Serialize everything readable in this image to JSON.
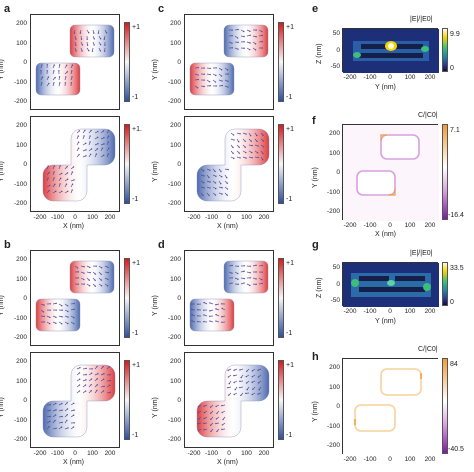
{
  "panels": {
    "a": "a",
    "b": "b",
    "c": "c",
    "d": "d",
    "e": "e",
    "f": "f",
    "g": "g",
    "h": "h"
  },
  "dots": {
    "a": "#e47aa8",
    "b": "#a8dcef",
    "c": "#d9141c",
    "d": "#3a62a8"
  },
  "colors": {
    "red": "#d7191c",
    "blue": "#2c4fa0"
  },
  "axes": {
    "x_label": "X (nm)",
    "y_label": "Y (nm)",
    "z_label": "Z (nm)",
    "y_ticks": [
      "200",
      "100",
      "0",
      "-100",
      "-200"
    ],
    "x_ticks": [
      "-200",
      "-100",
      "0",
      "100",
      "200"
    ],
    "z_ticks": [
      "50",
      "0",
      "-50"
    ]
  },
  "colorbars": {
    "a_top": {
      "max": "+1",
      "min": "-1"
    },
    "a_bot": {
      "max": "+1.",
      "min": "-1"
    },
    "b_top": {
      "max": "+1",
      "min": "-1"
    },
    "b_bot": {
      "max": "+1",
      "min": "-1"
    },
    "c_top": {
      "max": "+1",
      "min": "-1"
    },
    "c_bot": {
      "max": "+1",
      "min": "-1"
    },
    "d_top": {
      "max": "+1",
      "min": "-1"
    },
    "d_bot": {
      "max": "+1",
      "min": "-1"
    },
    "e": {
      "title": "|E|/|E0|",
      "max": "9.9",
      "min": "0"
    },
    "f": {
      "title": "C/|C0|",
      "max": "7.1",
      "min": "-16.4"
    },
    "g": {
      "title": "|E|/|E0|",
      "max": "33.5",
      "min": "0"
    },
    "h": {
      "title": "C/|C0|",
      "max": "84",
      "min": "-40.5"
    }
  }
}
